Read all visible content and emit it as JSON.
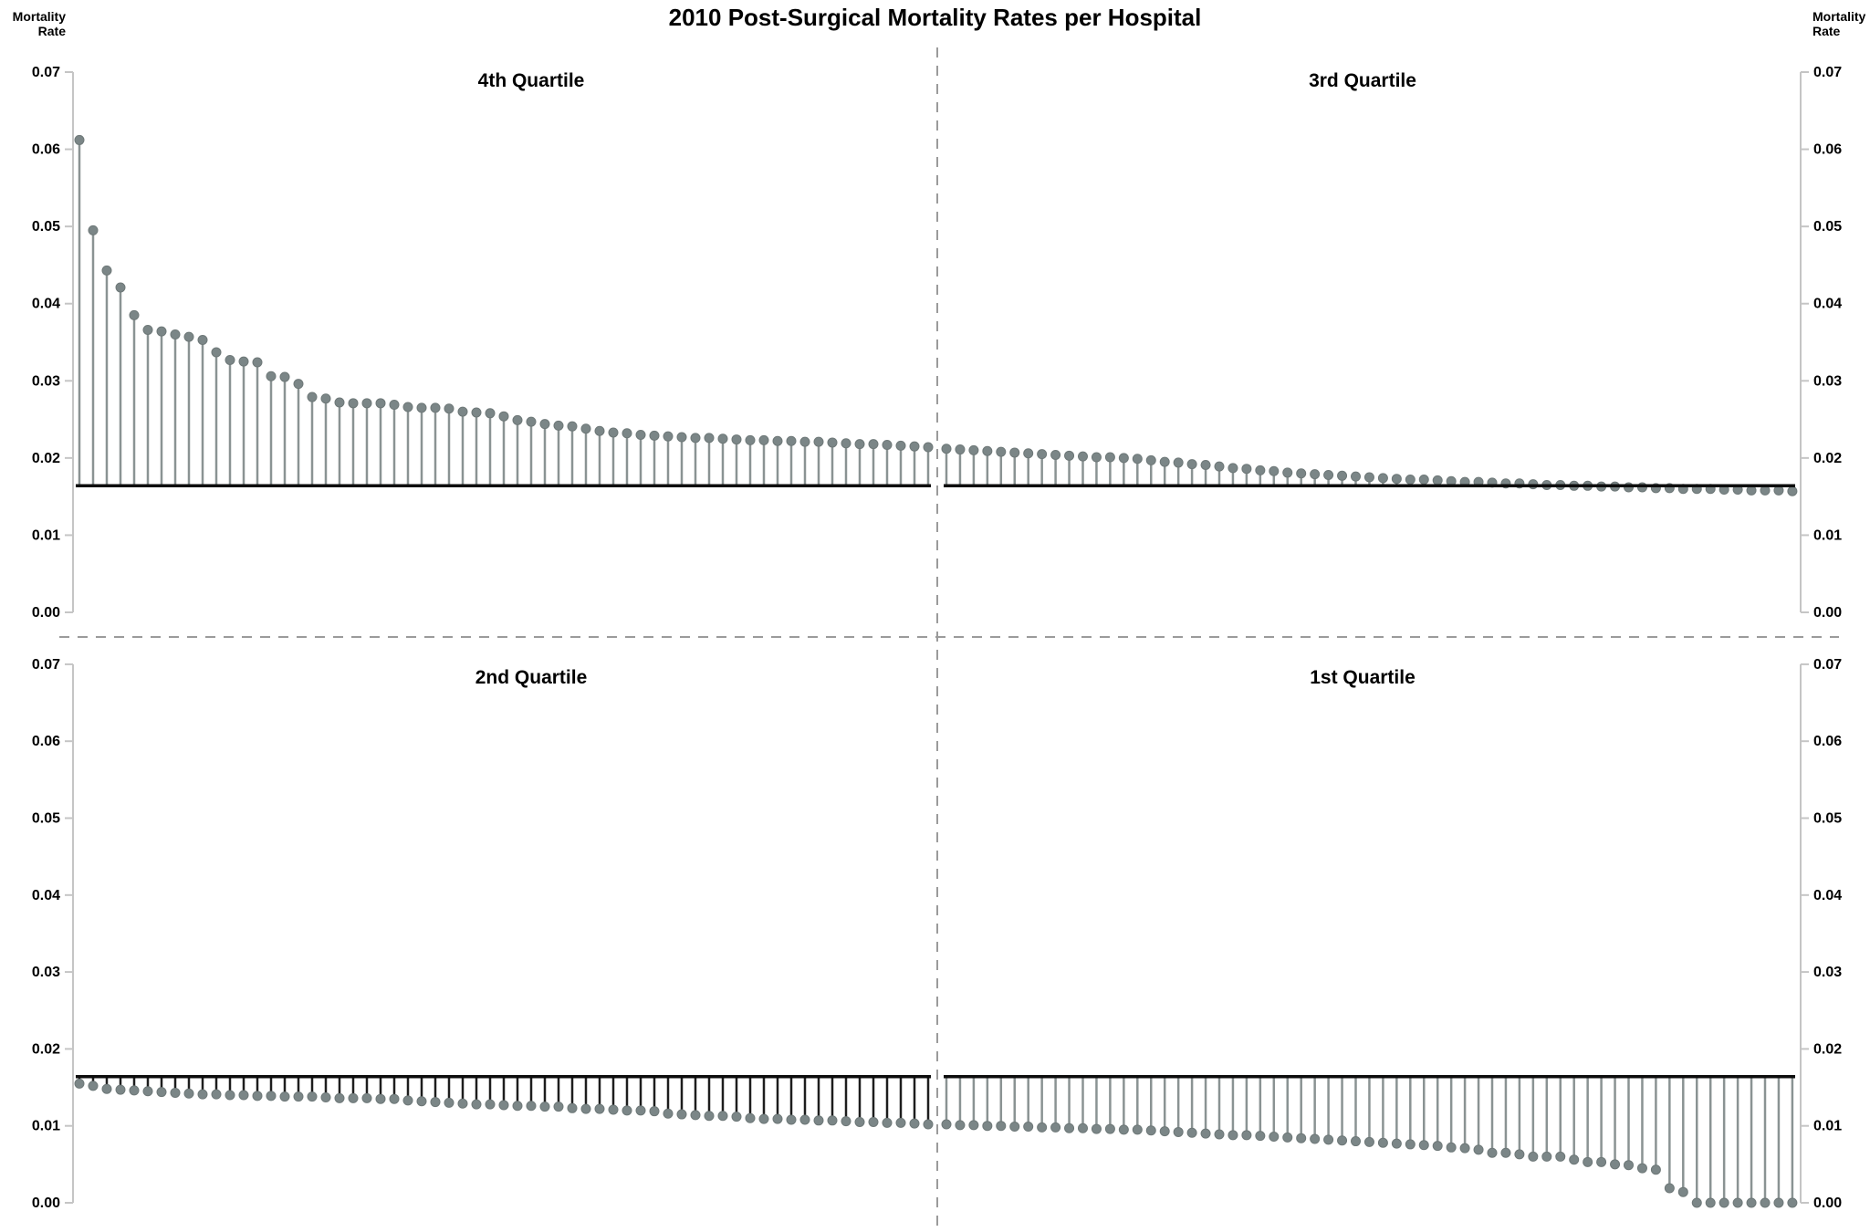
{
  "title": "2010 Post-Surgical Mortality Rates per Hospital",
  "y_axis": {
    "corner_label": "Mortality\nRate",
    "tick_labels": [
      "0.00",
      "0.01",
      "0.02",
      "0.03",
      "0.04",
      "0.05",
      "0.06",
      "0.07"
    ]
  },
  "colors": {
    "stem_gray": "#8a9393",
    "stem_dark": "#1d1d1d",
    "dot_fill": "#7b8687",
    "dot_edge": "#6e7878",
    "baseline": "#0d0d0d",
    "axis": "#c5c5c5",
    "divider": "#9b9b9b",
    "text": "#000000"
  },
  "chart_data": {
    "type": "scatter",
    "style": "lollipop-stem-quartile-panels",
    "title": "2010 Post-Surgical Mortality Rates per Hospital",
    "ylabel": "Mortality Rate",
    "ylim": [
      0.0,
      0.07
    ],
    "ytick_step": 0.01,
    "grid": false,
    "baseline_value": 0.0164,
    "panels": [
      {
        "label": "4th Quartile",
        "position": "top-left",
        "stem_style": "gray",
        "values": [
          0.0612,
          0.0495,
          0.0443,
          0.0421,
          0.0385,
          0.0366,
          0.0364,
          0.036,
          0.0357,
          0.0353,
          0.0337,
          0.0327,
          0.0325,
          0.0324,
          0.0306,
          0.0305,
          0.0296,
          0.0279,
          0.0277,
          0.0272,
          0.0271,
          0.0271,
          0.0271,
          0.0269,
          0.0266,
          0.0265,
          0.0265,
          0.0264,
          0.026,
          0.0259,
          0.0258,
          0.0254,
          0.0249,
          0.0247,
          0.0244,
          0.0242,
          0.0241,
          0.0238,
          0.0235,
          0.0233,
          0.0232,
          0.023,
          0.0229,
          0.0228,
          0.0227,
          0.0226,
          0.0226,
          0.0225,
          0.0224,
          0.0223,
          0.0223,
          0.0222,
          0.0222,
          0.0221,
          0.0221,
          0.022,
          0.0219,
          0.0218,
          0.0218,
          0.0217,
          0.0216,
          0.0215,
          0.0214
        ]
      },
      {
        "label": "3rd Quartile",
        "position": "top-right",
        "stem_style": "gray",
        "values": [
          0.0212,
          0.0211,
          0.021,
          0.0209,
          0.0208,
          0.0207,
          0.0206,
          0.0205,
          0.0204,
          0.0203,
          0.0202,
          0.0201,
          0.0201,
          0.02,
          0.0199,
          0.0197,
          0.0195,
          0.0194,
          0.0192,
          0.0191,
          0.0189,
          0.0187,
          0.0186,
          0.0184,
          0.0183,
          0.0181,
          0.018,
          0.0179,
          0.0178,
          0.0177,
          0.0176,
          0.0175,
          0.0174,
          0.0173,
          0.0172,
          0.0172,
          0.0171,
          0.017,
          0.0169,
          0.0169,
          0.0168,
          0.0167,
          0.0167,
          0.0166,
          0.0165,
          0.0165,
          0.0164,
          0.0164,
          0.0163,
          0.0163,
          0.0162,
          0.0162,
          0.0161,
          0.0161,
          0.016,
          0.016,
          0.016,
          0.0159,
          0.0159,
          0.0158,
          0.0158,
          0.0158,
          0.0157
        ]
      },
      {
        "label": "2nd Quartile",
        "position": "bottom-left",
        "stem_style": "dark",
        "values": [
          0.0155,
          0.0152,
          0.0148,
          0.0147,
          0.0146,
          0.0145,
          0.0144,
          0.0143,
          0.0142,
          0.0141,
          0.0141,
          0.014,
          0.014,
          0.0139,
          0.0139,
          0.0138,
          0.0138,
          0.0138,
          0.0137,
          0.0136,
          0.0136,
          0.0136,
          0.0135,
          0.0135,
          0.0133,
          0.0132,
          0.0131,
          0.013,
          0.0129,
          0.0128,
          0.0128,
          0.0127,
          0.0126,
          0.0126,
          0.0125,
          0.0125,
          0.0123,
          0.0122,
          0.0122,
          0.0121,
          0.012,
          0.012,
          0.0119,
          0.0116,
          0.0115,
          0.0114,
          0.0113,
          0.0113,
          0.0112,
          0.011,
          0.0109,
          0.0109,
          0.0108,
          0.0108,
          0.0107,
          0.0107,
          0.0106,
          0.0105,
          0.0105,
          0.0104,
          0.0104,
          0.0103,
          0.0102
        ]
      },
      {
        "label": "1st Quartile",
        "position": "bottom-right",
        "stem_style": "gray",
        "values": [
          0.0102,
          0.0101,
          0.0101,
          0.01,
          0.01,
          0.0099,
          0.0099,
          0.0098,
          0.0098,
          0.0097,
          0.0097,
          0.0096,
          0.0096,
          0.0095,
          0.0095,
          0.0094,
          0.0093,
          0.0092,
          0.0091,
          0.009,
          0.0089,
          0.0088,
          0.0088,
          0.0087,
          0.0086,
          0.0085,
          0.0084,
          0.0083,
          0.0082,
          0.0081,
          0.008,
          0.0079,
          0.0078,
          0.0077,
          0.0076,
          0.0075,
          0.0074,
          0.0072,
          0.0071,
          0.0069,
          0.0065,
          0.0065,
          0.0063,
          0.006,
          0.006,
          0.006,
          0.0056,
          0.0053,
          0.0053,
          0.005,
          0.0049,
          0.0045,
          0.0043,
          0.0019,
          0.0014,
          0.0,
          0.0,
          0.0,
          0.0,
          0.0,
          0.0,
          0.0,
          0.0
        ]
      }
    ]
  }
}
